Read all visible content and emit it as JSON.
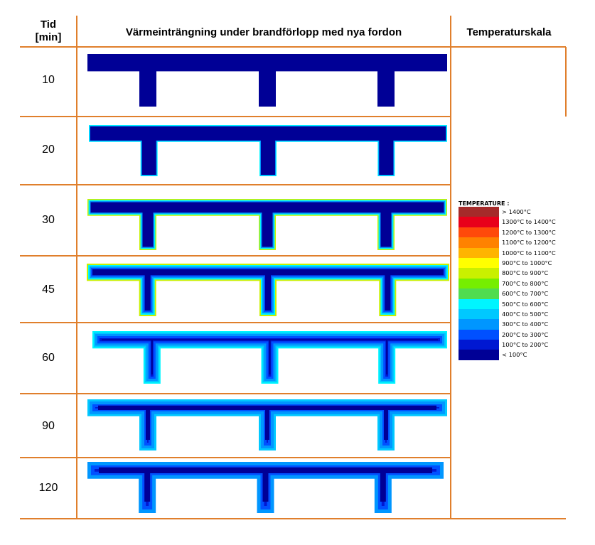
{
  "header": {
    "time_col": "Tid",
    "time_unit": "[min]",
    "main_col": "Värmeinträngning under brandförlopp med nya fordon",
    "scale_col": "Temperaturskala"
  },
  "rows": [
    {
      "time": "10",
      "level": 0
    },
    {
      "time": "20",
      "level": 1
    },
    {
      "time": "30",
      "level": 2
    },
    {
      "time": "45",
      "level": 3
    },
    {
      "time": "60",
      "level": 4
    },
    {
      "time": "90",
      "level": 5
    },
    {
      "time": "120",
      "level": 6
    }
  ],
  "legend": {
    "title": "TEMPERATURE :",
    "items": [
      {
        "label": "> 1400°C",
        "color": "#a52a2a"
      },
      {
        "label": "1300°C to 1400°C",
        "color": "#e8001a"
      },
      {
        "label": "1200°C to 1300°C",
        "color": "#ff4a0a"
      },
      {
        "label": "1100°C to 1200°C",
        "color": "#ff8200"
      },
      {
        "label": "1000°C to 1100°C",
        "color": "#ffb400"
      },
      {
        "label": "900°C to 1000°C",
        "color": "#ffff00"
      },
      {
        "label": "800°C to 900°C",
        "color": "#c9f000"
      },
      {
        "label": "700°C to 800°C",
        "color": "#76ee00"
      },
      {
        "label": "600°C to 700°C",
        "color": "#50dc50"
      },
      {
        "label": "500°C to 600°C",
        "color": "#00f5ff"
      },
      {
        "label": "400°C to 500°C",
        "color": "#00c8ff"
      },
      {
        "label": "300°C to 400°C",
        "color": "#0096ff"
      },
      {
        "label": "200°C to 300°C",
        "color": "#0050ff"
      },
      {
        "label": "100°C to 200°C",
        "color": "#0018d2"
      },
      {
        "label": "< 100°C",
        "color": "#000096"
      }
    ]
  }
}
